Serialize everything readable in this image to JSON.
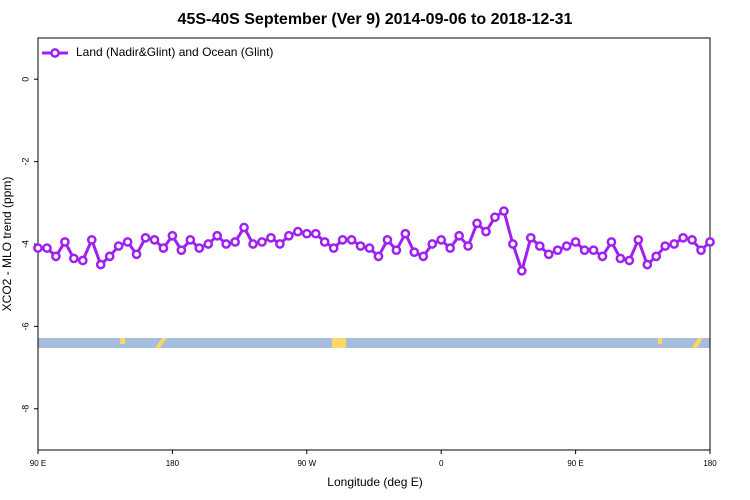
{
  "chart_data": {
    "type": "line",
    "title": "45S-40S September (Ver 9)   2014-09-06 to 2018-12-31",
    "x_label": "Longitude (deg E)",
    "y_label": "XCO2 - MLO trend (ppm)",
    "xlim": [
      90,
      540
    ],
    "xticks": [
      {
        "value": 90,
        "label": "90 E"
      },
      180,
      {
        "value": 270,
        "label": "90 W"
      },
      {
        "value": 360,
        "label": "0"
      },
      {
        "value": 450,
        "label": "90 E"
      },
      {
        "value": 540,
        "label": "180"
      }
    ],
    "ylim": [
      -9,
      1
    ],
    "yticks": [
      0,
      -2,
      -4,
      -6,
      -8
    ],
    "legend": "top-left",
    "x": [
      90,
      96,
      102,
      108,
      114,
      120,
      126,
      132,
      138,
      144,
      150,
      156,
      162,
      168,
      174,
      180,
      186,
      192,
      198,
      204,
      210,
      216,
      222,
      228,
      234,
      240,
      246,
      252,
      258,
      264,
      270,
      276,
      282,
      288,
      294,
      300,
      306,
      312,
      318,
      324,
      330,
      336,
      342,
      348,
      354,
      360,
      366,
      372,
      378,
      384,
      390,
      396,
      402,
      408,
      414,
      420,
      426,
      432,
      438,
      444,
      450,
      456,
      462,
      468,
      474,
      480,
      486,
      492,
      498,
      504,
      510,
      516,
      522,
      528,
      534,
      540
    ],
    "series": [
      {
        "name": "Land (Nadir&Glint) and Ocean (Glint)",
        "color": "#a020f0",
        "values": [
          -4.1,
          -4.1,
          -4.3,
          -3.95,
          -4.35,
          -4.4,
          -3.9,
          -4.5,
          -4.3,
          -4.05,
          -3.95,
          -4.25,
          -3.85,
          -3.9,
          -4.1,
          -3.8,
          -4.15,
          -3.9,
          -4.1,
          -4.0,
          -3.8,
          -4.0,
          -3.95,
          -3.6,
          -4.0,
          -3.95,
          -3.85,
          -4.0,
          -3.8,
          -3.7,
          -3.75,
          -3.75,
          -3.95,
          -4.1,
          -3.9,
          -3.9,
          -4.05,
          -4.1,
          -4.3,
          -3.9,
          -4.15,
          -3.75,
          -4.2,
          -4.3,
          -4.0,
          -3.9,
          -4.1,
          -3.8,
          -4.05,
          -3.5,
          -3.7,
          -3.35,
          -3.2,
          -4.0,
          -4.65,
          -3.85,
          -4.05,
          -4.25,
          -4.15,
          -4.05,
          -3.95,
          -4.15,
          -4.15,
          -4.3,
          -3.95,
          -4.35,
          -4.4,
          -3.9,
          -4.5,
          -4.3,
          -4.05,
          -4.0,
          -3.85,
          -3.9,
          -4.15,
          -3.95
        ]
      }
    ]
  }
}
